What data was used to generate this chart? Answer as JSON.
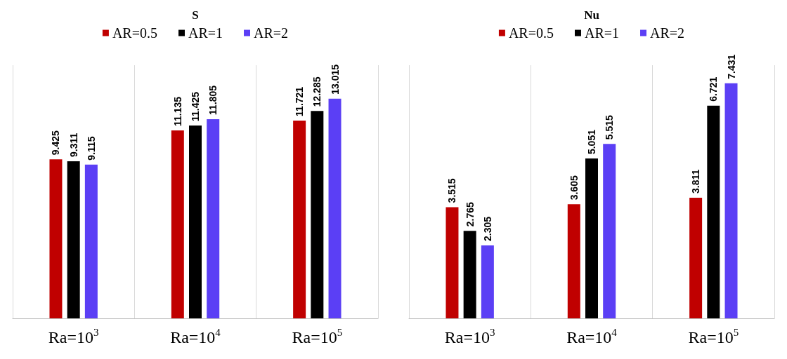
{
  "chart_data": [
    {
      "type": "bar",
      "title": "S",
      "categories": [
        "Ra=10$^{3}$",
        "Ra=10$^{4}$",
        "Ra=10$^{5}$"
      ],
      "series": [
        {
          "name": "AR=0.5",
          "color": "#c00000",
          "values": [
            9.425,
            11.135,
            11.721
          ]
        },
        {
          "name": "AR=1",
          "color": "#000000",
          "values": [
            9.311,
            11.425,
            12.285
          ]
        },
        {
          "name": "AR=2",
          "color": "#5b3ff5",
          "values": [
            9.115,
            11.805,
            13.015
          ]
        }
      ],
      "data_labels": true,
      "legend": "top",
      "grid": "x"
    },
    {
      "type": "bar",
      "title": "Nu",
      "categories": [
        "Ra=10$^{3}$",
        "Ra=10$^{4}$",
        "Ra=10$^{5}$"
      ],
      "series": [
        {
          "name": "AR=0.5",
          "color": "#c00000",
          "values": [
            3.515,
            3.605,
            3.811
          ]
        },
        {
          "name": "AR=1",
          "color": "#000000",
          "values": [
            2.765,
            5.051,
            6.721
          ]
        },
        {
          "name": "AR=2",
          "color": "#5b3ff5",
          "values": [
            2.305,
            5.515,
            7.431
          ]
        }
      ],
      "data_labels": true,
      "legend": "top",
      "grid": "x"
    }
  ]
}
